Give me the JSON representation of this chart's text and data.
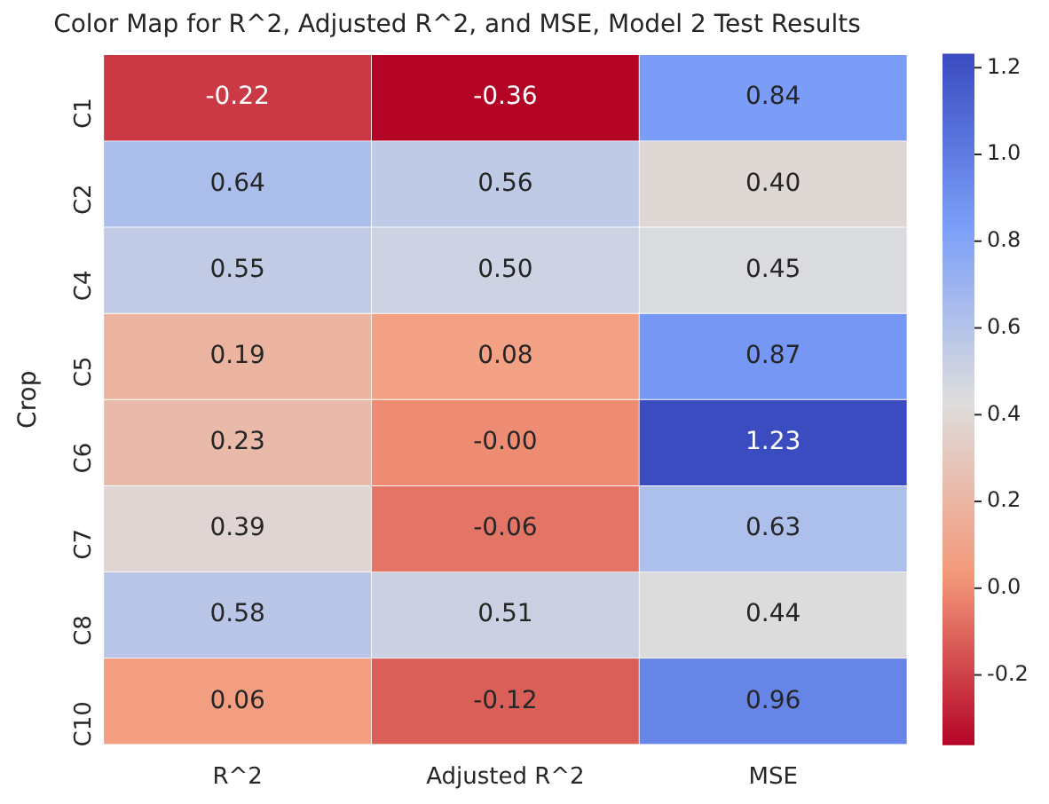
{
  "chart_data": {
    "type": "heatmap",
    "title": "Color Map for R^2, Adjusted R^2, and MSE, Model 2 Test Results",
    "ylabel": "Crop",
    "categories": [
      "R^2",
      "Adjusted R^2",
      "MSE"
    ],
    "y_categories": [
      "C1",
      "C2",
      "C4",
      "C5",
      "C6",
      "C7",
      "C8",
      "C10"
    ],
    "cells": [
      [
        -0.22,
        -0.36,
        0.84
      ],
      [
        0.64,
        0.56,
        0.4
      ],
      [
        0.55,
        0.5,
        0.45
      ],
      [
        0.19,
        0.08,
        0.87
      ],
      [
        0.23,
        0,
        1.23
      ],
      [
        0.39,
        -0.06,
        0.63
      ],
      [
        0.58,
        0.51,
        0.44
      ],
      [
        0.06,
        -0.12,
        0.96
      ]
    ],
    "cell_labels": [
      [
        "-0.22",
        "-0.36",
        "0.84"
      ],
      [
        "0.64",
        "0.56",
        "0.40"
      ],
      [
        "0.55",
        "0.50",
        "0.45"
      ],
      [
        "0.19",
        "0.08",
        "0.87"
      ],
      [
        "0.23",
        "-0.00",
        "1.23"
      ],
      [
        "0.39",
        "-0.06",
        "0.63"
      ],
      [
        "0.58",
        "0.51",
        "0.44"
      ],
      [
        "0.06",
        "-0.12",
        "0.96"
      ]
    ],
    "clim": [
      -0.36,
      1.23
    ],
    "cticks": [
      -0.2,
      {
        "value": 0,
        "label": "0.0"
      },
      0.2,
      0.4,
      0.6,
      0.8,
      {
        "value": 1,
        "label": "1.0"
      },
      1.2
    ]
  }
}
